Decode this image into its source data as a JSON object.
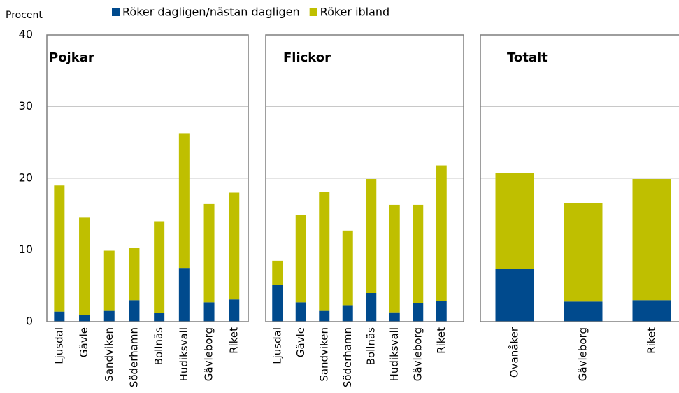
{
  "chart_data": [
    {
      "type": "bar",
      "title": "Pojkar",
      "y_label": "Procent",
      "stacked": true,
      "categories": [
        "Ljusdal",
        "Gävle",
        "Sandviken",
        "Söderhamn",
        "Bollnäs",
        "Hudiksvall",
        "Gävleborg",
        "Riket"
      ],
      "series": [
        {
          "name": "Röker dagligen/nästan dagligen",
          "color": "#004a8d",
          "values": [
            1.4,
            0.9,
            1.5,
            3.0,
            1.2,
            7.5,
            2.7,
            3.1
          ]
        },
        {
          "name": "Röker ibland",
          "color": "#bfbf00",
          "values": [
            17.6,
            13.6,
            8.4,
            7.3,
            12.8,
            18.8,
            13.7,
            14.9
          ]
        }
      ],
      "ylim": [
        0,
        40
      ],
      "yticks": [
        0,
        10,
        20,
        30,
        40
      ],
      "grid": true
    },
    {
      "type": "bar",
      "title": "Flickor",
      "stacked": true,
      "categories": [
        "Ljusdal",
        "Gävle",
        "Sandviken",
        "Söderhamn",
        "Bollnäs",
        "Hudiksvall",
        "Gävleborg",
        "Riket"
      ],
      "series": [
        {
          "color": "#004a8d",
          "values": [
            5.1,
            2.7,
            1.5,
            2.3,
            4.0,
            1.3,
            2.6,
            2.9
          ]
        },
        {
          "color": "#bfbf00",
          "values": [
            3.4,
            12.2,
            16.6,
            10.4,
            15.9,
            15.0,
            13.7,
            18.9
          ]
        }
      ],
      "ylim": [
        0,
        40
      ],
      "grid": true
    },
    {
      "type": "bar",
      "title": "Totalt",
      "stacked": true,
      "categories": [
        "Ovanåker",
        "Gävleborg",
        "Riket"
      ],
      "series": [
        {
          "color": "#004a8d",
          "values": [
            7.4,
            2.8,
            3.0
          ]
        },
        {
          "color": "#bfbf00",
          "values": [
            13.3,
            13.7,
            16.9
          ]
        }
      ],
      "ylim": [
        0,
        40
      ],
      "grid": true
    }
  ]
}
